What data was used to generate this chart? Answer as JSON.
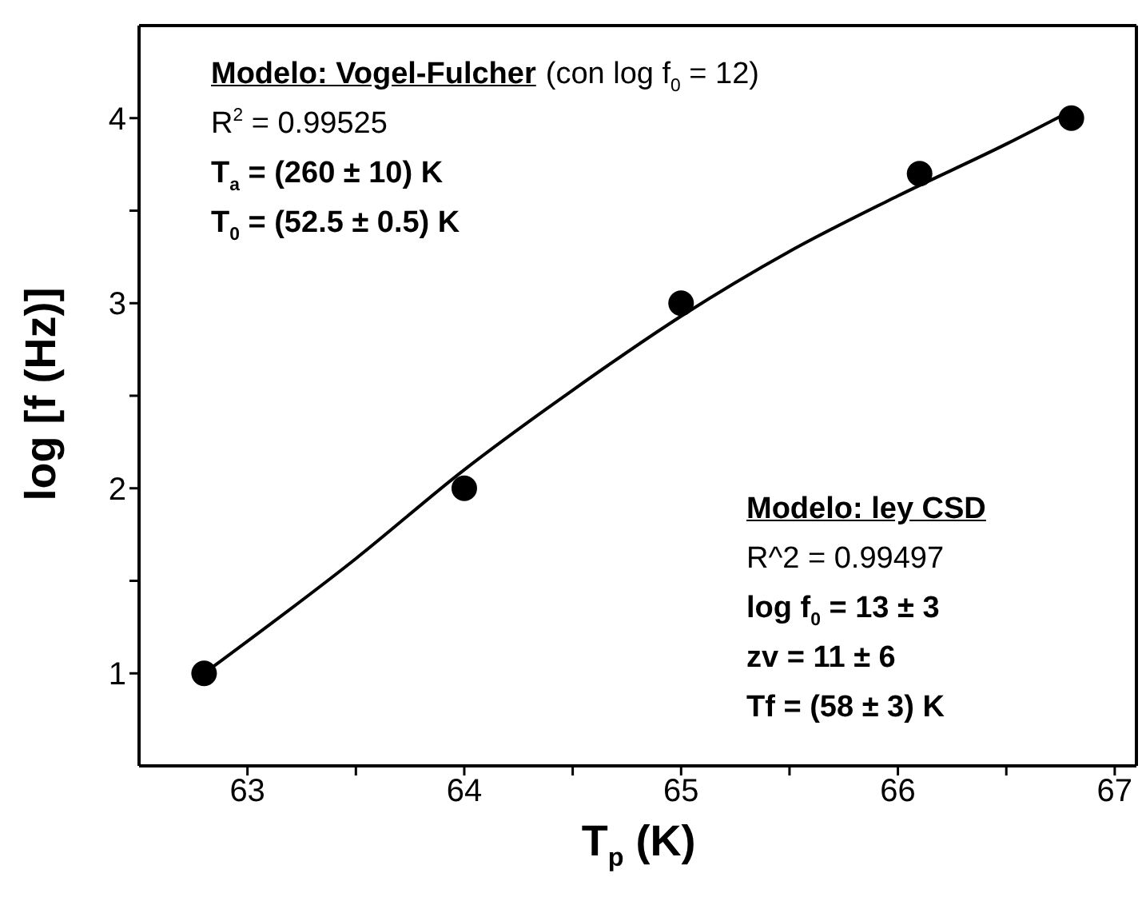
{
  "chart_data": {
    "type": "scatter",
    "xlabel": "T$_{p}$ (K)",
    "ylabel": "log [f (Hz)]",
    "xlim": [
      62.5,
      67.1
    ],
    "ylim": [
      0.5,
      4.5
    ],
    "xticks": [
      63,
      {
        "value": 63.5,
        "label": null
      },
      64,
      {
        "value": 64.5,
        "label": null
      },
      65,
      {
        "value": 65.5,
        "label": null
      },
      66,
      {
        "value": 66.5,
        "label": null
      },
      67
    ],
    "yticks": [
      {
        "value": 1.5,
        "label": null
      },
      1,
      2,
      {
        "value": 2.5,
        "label": null
      },
      3,
      {
        "value": 3.5,
        "label": null
      },
      4
    ],
    "marker": "circle",
    "series": [
      {
        "color": "#000000",
        "x": [
          62.8,
          64,
          65,
          66.1,
          66.8
        ],
        "values": [
          1,
          2,
          3,
          3.7,
          4
        ]
      },
      {
        "type": "line",
        "color": "#000000",
        "marker": "none",
        "line_style": "solid",
        "x": [
          62.8,
          63.5,
          64,
          64.5,
          65,
          65.5,
          66,
          66.5,
          66.8
        ],
        "values": [
          1.0,
          1.62,
          2.1,
          2.53,
          2.93,
          3.28,
          3.58,
          3.86,
          4.04
        ]
      }
    ],
    "annotations": [
      "Modelo: Vogel-Fulcher",
      "(con log f$_{0}$ = 12)",
      "R$^{2}$ = 0.99525",
      "T$_{a}$ = (260 ± 10) K",
      "T$_{0}$ = (52.5 ± 0.5) K",
      "Modelo: ley CSD",
      "R^2 =  0.99497",
      "log f$_{0}$ = 13 ± 3",
      "zv = 11 ± 6",
      "Tf = (58 ± 3) K"
    ]
  }
}
